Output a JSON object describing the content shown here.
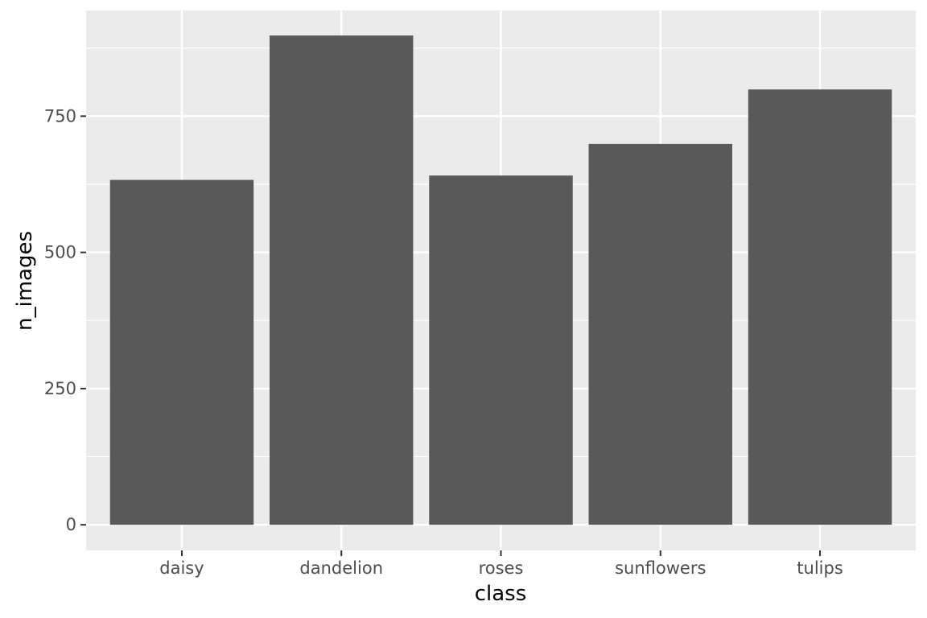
{
  "chart_data": {
    "type": "bar",
    "title": "",
    "xlabel": "class",
    "ylabel": "n_images",
    "categories": [
      "daisy",
      "dandelion",
      "roses",
      "sunflowers",
      "tulips"
    ],
    "values": [
      633,
      898,
      641,
      699,
      799
    ],
    "ylim": [
      -47,
      944
    ],
    "yticks": [
      0,
      250,
      500,
      750
    ],
    "grid": true,
    "legend": "none",
    "colors": {
      "panel": "#ebebeb",
      "grid": "#ffffff",
      "bar": "#595959",
      "tick_text": "#4d4d4d",
      "axis_title": "#000000"
    }
  }
}
